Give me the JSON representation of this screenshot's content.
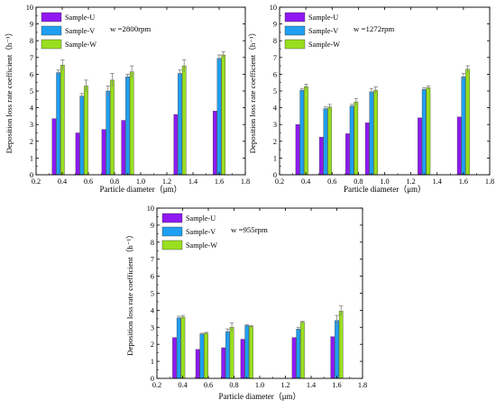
{
  "colors": {
    "sample_u": "#8f19f2",
    "sample_v": "#1f9ff2",
    "sample_w": "#99df1f",
    "axis": "#000000",
    "error_bar": "#808080"
  },
  "chart_data": [
    {
      "type": "bar",
      "annotation": "w =2800rpm",
      "xlabel": "Particle diameter（μm）",
      "ylabel": "Deposition loss rate coefficient（h⁻¹）",
      "xlim": [
        0.2,
        1.8
      ],
      "ylim": [
        0,
        10
      ],
      "xticks": [
        "0.2",
        "0.4",
        "0.6",
        "0.8",
        "1.0",
        "1.2",
        "1.4",
        "1.6",
        "1.8"
      ],
      "yticks": [
        "0",
        "1",
        "2",
        "3",
        "4",
        "5",
        "6",
        "7",
        "8",
        "9",
        "10"
      ],
      "legend_position": "top-left",
      "categories": [
        0.37,
        0.55,
        0.75,
        0.9,
        1.3,
        1.6
      ],
      "series": [
        {
          "name": "Sample-U",
          "values": [
            3.35,
            2.5,
            2.7,
            3.25,
            3.6,
            3.8
          ],
          "errors": [
            0,
            0,
            0,
            0,
            0,
            0
          ]
        },
        {
          "name": "Sample-V",
          "values": [
            6.1,
            4.7,
            5.0,
            5.85,
            6.05,
            6.95
          ],
          "errors": [
            0.15,
            0.15,
            0.3,
            0.15,
            0.2,
            0.2
          ]
        },
        {
          "name": "Sample-W",
          "values": [
            6.55,
            5.3,
            5.65,
            6.15,
            6.5,
            7.15
          ],
          "errors": [
            0.3,
            0.35,
            0.4,
            0.35,
            0.35,
            0.2
          ]
        }
      ]
    },
    {
      "type": "bar",
      "annotation": "w =1272rpm",
      "xlabel": "Particle diameter（μm）",
      "ylabel": "Deposition loss rate coefficient（h⁻¹）",
      "xlim": [
        0.2,
        1.8
      ],
      "ylim": [
        0,
        10
      ],
      "xticks": [
        "0.2",
        "0.4",
        "0.6",
        "0.8",
        "1.0",
        "1.2",
        "1.4",
        "1.6",
        "1.8"
      ],
      "yticks": [
        "0",
        "1",
        "2",
        "3",
        "4",
        "5",
        "6",
        "7",
        "8",
        "9",
        "10"
      ],
      "legend_position": "top-left",
      "categories": [
        0.37,
        0.55,
        0.75,
        0.9,
        1.3,
        1.6
      ],
      "series": [
        {
          "name": "Sample-U",
          "values": [
            3.0,
            2.25,
            2.45,
            3.1,
            3.4,
            3.45
          ],
          "errors": [
            0,
            0,
            0,
            0,
            0,
            0
          ]
        },
        {
          "name": "Sample-V",
          "values": [
            5.05,
            3.95,
            4.1,
            4.95,
            5.1,
            5.85
          ],
          "errors": [
            0.1,
            0.1,
            0.1,
            0.2,
            0.1,
            0.2
          ]
        },
        {
          "name": "Sample-W",
          "values": [
            5.25,
            4.05,
            4.35,
            5.05,
            5.2,
            6.3
          ],
          "errors": [
            0.15,
            0.15,
            0.2,
            0.2,
            0.1,
            0.2
          ]
        }
      ]
    },
    {
      "type": "bar",
      "annotation": "w =955rpm",
      "xlabel": "Particle diameter（μm）",
      "ylabel": "Deposition loss rate coefficient（h⁻¹）",
      "xlim": [
        0.2,
        1.8
      ],
      "ylim": [
        0,
        10
      ],
      "xticks": [
        "0.2",
        "0.4",
        "0.6",
        "0.8",
        "1.0",
        "1.2",
        "1.4",
        "1.6",
        "1.8"
      ],
      "yticks": [
        "0",
        "1",
        "2",
        "3",
        "4",
        "5",
        "6",
        "7",
        "8",
        "9",
        "10"
      ],
      "legend_position": "top-left",
      "categories": [
        0.37,
        0.55,
        0.75,
        0.9,
        1.3,
        1.6
      ],
      "series": [
        {
          "name": "Sample-U",
          "values": [
            2.4,
            1.7,
            1.8,
            2.3,
            2.4,
            2.45
          ],
          "errors": [
            0,
            0,
            0,
            0,
            0,
            0
          ]
        },
        {
          "name": "Sample-V",
          "values": [
            3.55,
            2.6,
            2.75,
            3.1,
            2.9,
            3.4
          ],
          "errors": [
            0.1,
            0.05,
            0.15,
            0.05,
            0.1,
            0.3
          ]
        },
        {
          "name": "Sample-W",
          "values": [
            3.6,
            2.65,
            3.0,
            3.05,
            3.3,
            3.95
          ],
          "errors": [
            0.1,
            0.05,
            0.25,
            0.05,
            0.05,
            0.3
          ]
        }
      ]
    }
  ]
}
